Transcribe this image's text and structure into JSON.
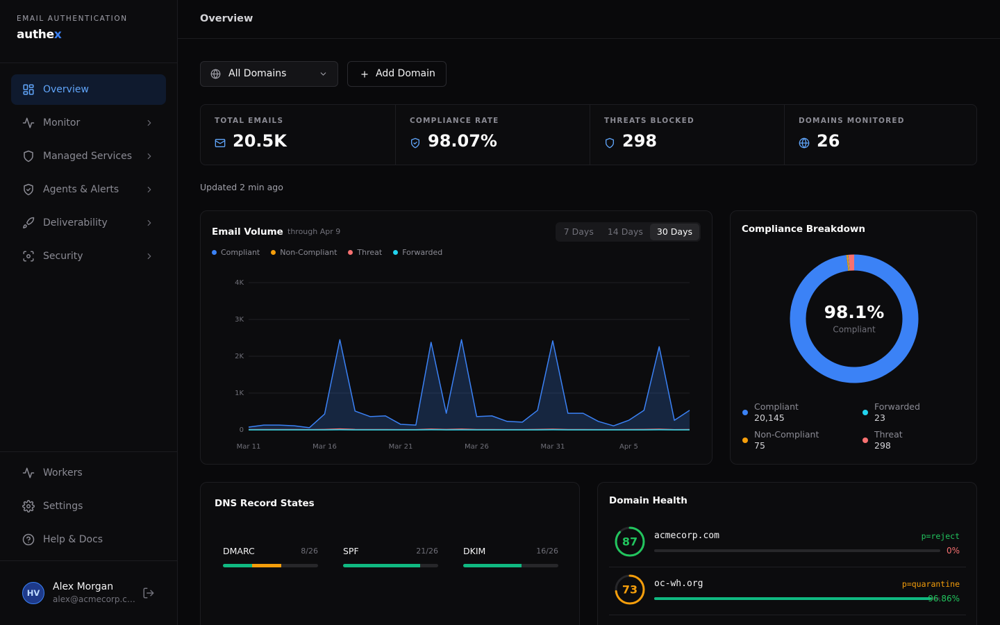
{
  "sidebar": {
    "eyebrow": "EMAIL AUTHENTICATION",
    "logo": {
      "text": "authe",
      "accent": "x"
    },
    "nav": [
      {
        "label": "Overview",
        "active": true
      },
      {
        "label": "Monitor",
        "chevron": true
      },
      {
        "label": "Managed Services",
        "chevron": true
      },
      {
        "label": "Agents & Alerts",
        "chevron": true
      },
      {
        "label": "Deliverability",
        "chevron": true
      },
      {
        "label": "Security",
        "chevron": true
      }
    ],
    "footer_nav": [
      "Workers",
      "Settings",
      "Help & Docs"
    ],
    "user": {
      "initials": "HV",
      "name": "Alex Morgan",
      "email": "alex@acmecorp.c…"
    }
  },
  "header": {
    "title": "Overview"
  },
  "toolbar": {
    "domain_select": "All Domains",
    "add_button": "Add Domain"
  },
  "stats": [
    {
      "label": "TOTAL EMAILS",
      "value": "20.5K"
    },
    {
      "label": "COMPLIANCE RATE",
      "value": "98.07%"
    },
    {
      "label": "THREATS BLOCKED",
      "value": "298"
    },
    {
      "label": "DOMAINS MONITORED",
      "value": "26"
    }
  ],
  "updated": "Updated 2 min ago",
  "chart_data": [
    {
      "type": "area",
      "title": "Email Volume",
      "subtitle": "through Apr 9",
      "range_options": [
        "7 Days",
        "14 Days",
        "30 Days"
      ],
      "active_range": 2,
      "x": [
        "Mar 11",
        null,
        null,
        null,
        null,
        "Mar 16",
        null,
        null,
        null,
        null,
        "Mar 21",
        null,
        null,
        null,
        null,
        "Mar 26",
        null,
        null,
        null,
        null,
        "Mar 31",
        null,
        null,
        null,
        null,
        "Apr 5",
        null,
        null,
        null,
        null
      ],
      "series": [
        {
          "name": "Compliant",
          "color": "#3b82f6",
          "values": [
            75,
            130,
            130,
            110,
            60,
            430,
            2450,
            510,
            360,
            380,
            150,
            130,
            2380,
            450,
            2450,
            360,
            380,
            230,
            210,
            530,
            2420,
            450,
            450,
            230,
            110,
            260,
            530,
            2260,
            260,
            530
          ]
        },
        {
          "name": "Non-Compliant",
          "color": "#f59e0b",
          "values": [
            2,
            3,
            3,
            2,
            2,
            3,
            4,
            3,
            2,
            2,
            2,
            2,
            4,
            3,
            4,
            2,
            2,
            2,
            2,
            3,
            4,
            2,
            3,
            2,
            2,
            2,
            3,
            4,
            2,
            2
          ]
        },
        {
          "name": "Threat",
          "color": "#f87171",
          "values": [
            8,
            9,
            10,
            9,
            7,
            12,
            25,
            12,
            9,
            10,
            8,
            8,
            22,
            11,
            21,
            9,
            9,
            8,
            8,
            11,
            20,
            10,
            10,
            8,
            7,
            9,
            11,
            19,
            8,
            10
          ]
        },
        {
          "name": "Forwarded",
          "color": "#22d3ee",
          "values": [
            1,
            1,
            1,
            0,
            0,
            1,
            2,
            1,
            1,
            1,
            0,
            1,
            2,
            1,
            1,
            1,
            1,
            0,
            0,
            1,
            2,
            1,
            1,
            0,
            0,
            1,
            1,
            2,
            0,
            1
          ]
        }
      ],
      "ylim": [
        0,
        4000
      ],
      "yticks": [
        0,
        {
          "value": 1000,
          "label": "1K"
        },
        {
          "value": 2000,
          "label": "2K"
        },
        {
          "value": 3000,
          "label": "3K"
        },
        {
          "value": 4000,
          "label": "4K"
        }
      ],
      "grid": true
    },
    {
      "type": "donut",
      "title": "Compliance Breakdown",
      "center_value": "98.1%",
      "center_label": "Compliant",
      "categories": [
        "Compliant",
        "Non-Compliant",
        "Forwarded",
        "Threat"
      ],
      "values": [
        20145,
        75,
        23,
        298
      ],
      "value_labels": [
        "20,145",
        "75",
        "23",
        "298"
      ],
      "colors": [
        "#3b82f6",
        "#f59e0b",
        "#22d3ee",
        "#f87171"
      ]
    }
  ],
  "dns": {
    "title": "DNS Record States",
    "records": [
      {
        "name": "DMARC",
        "label": "8/26",
        "value": 8,
        "partial": 8,
        "total": 26
      },
      {
        "name": "SPF",
        "label": "21/26",
        "value": 21,
        "total": 26
      },
      {
        "name": "DKIM",
        "label": "16/26",
        "value": 16,
        "total": 26
      }
    ]
  },
  "domain_health": {
    "title": "Domain Health",
    "domains": [
      {
        "name": "acmecorp.com",
        "score": 87,
        "color": "#22c55e",
        "policy": "p=reject",
        "policy_color": "#22c55e",
        "percent": 0,
        "percent_label": "0%",
        "percent_color": "#f87171"
      },
      {
        "name": "oc-wh.org",
        "score": 73,
        "color": "#f59e0b",
        "policy": "p=quarantine",
        "policy_color": "#f59e0b",
        "percent": 96.86,
        "percent_label": "96.86%",
        "percent_color": "#22c55e"
      }
    ]
  }
}
